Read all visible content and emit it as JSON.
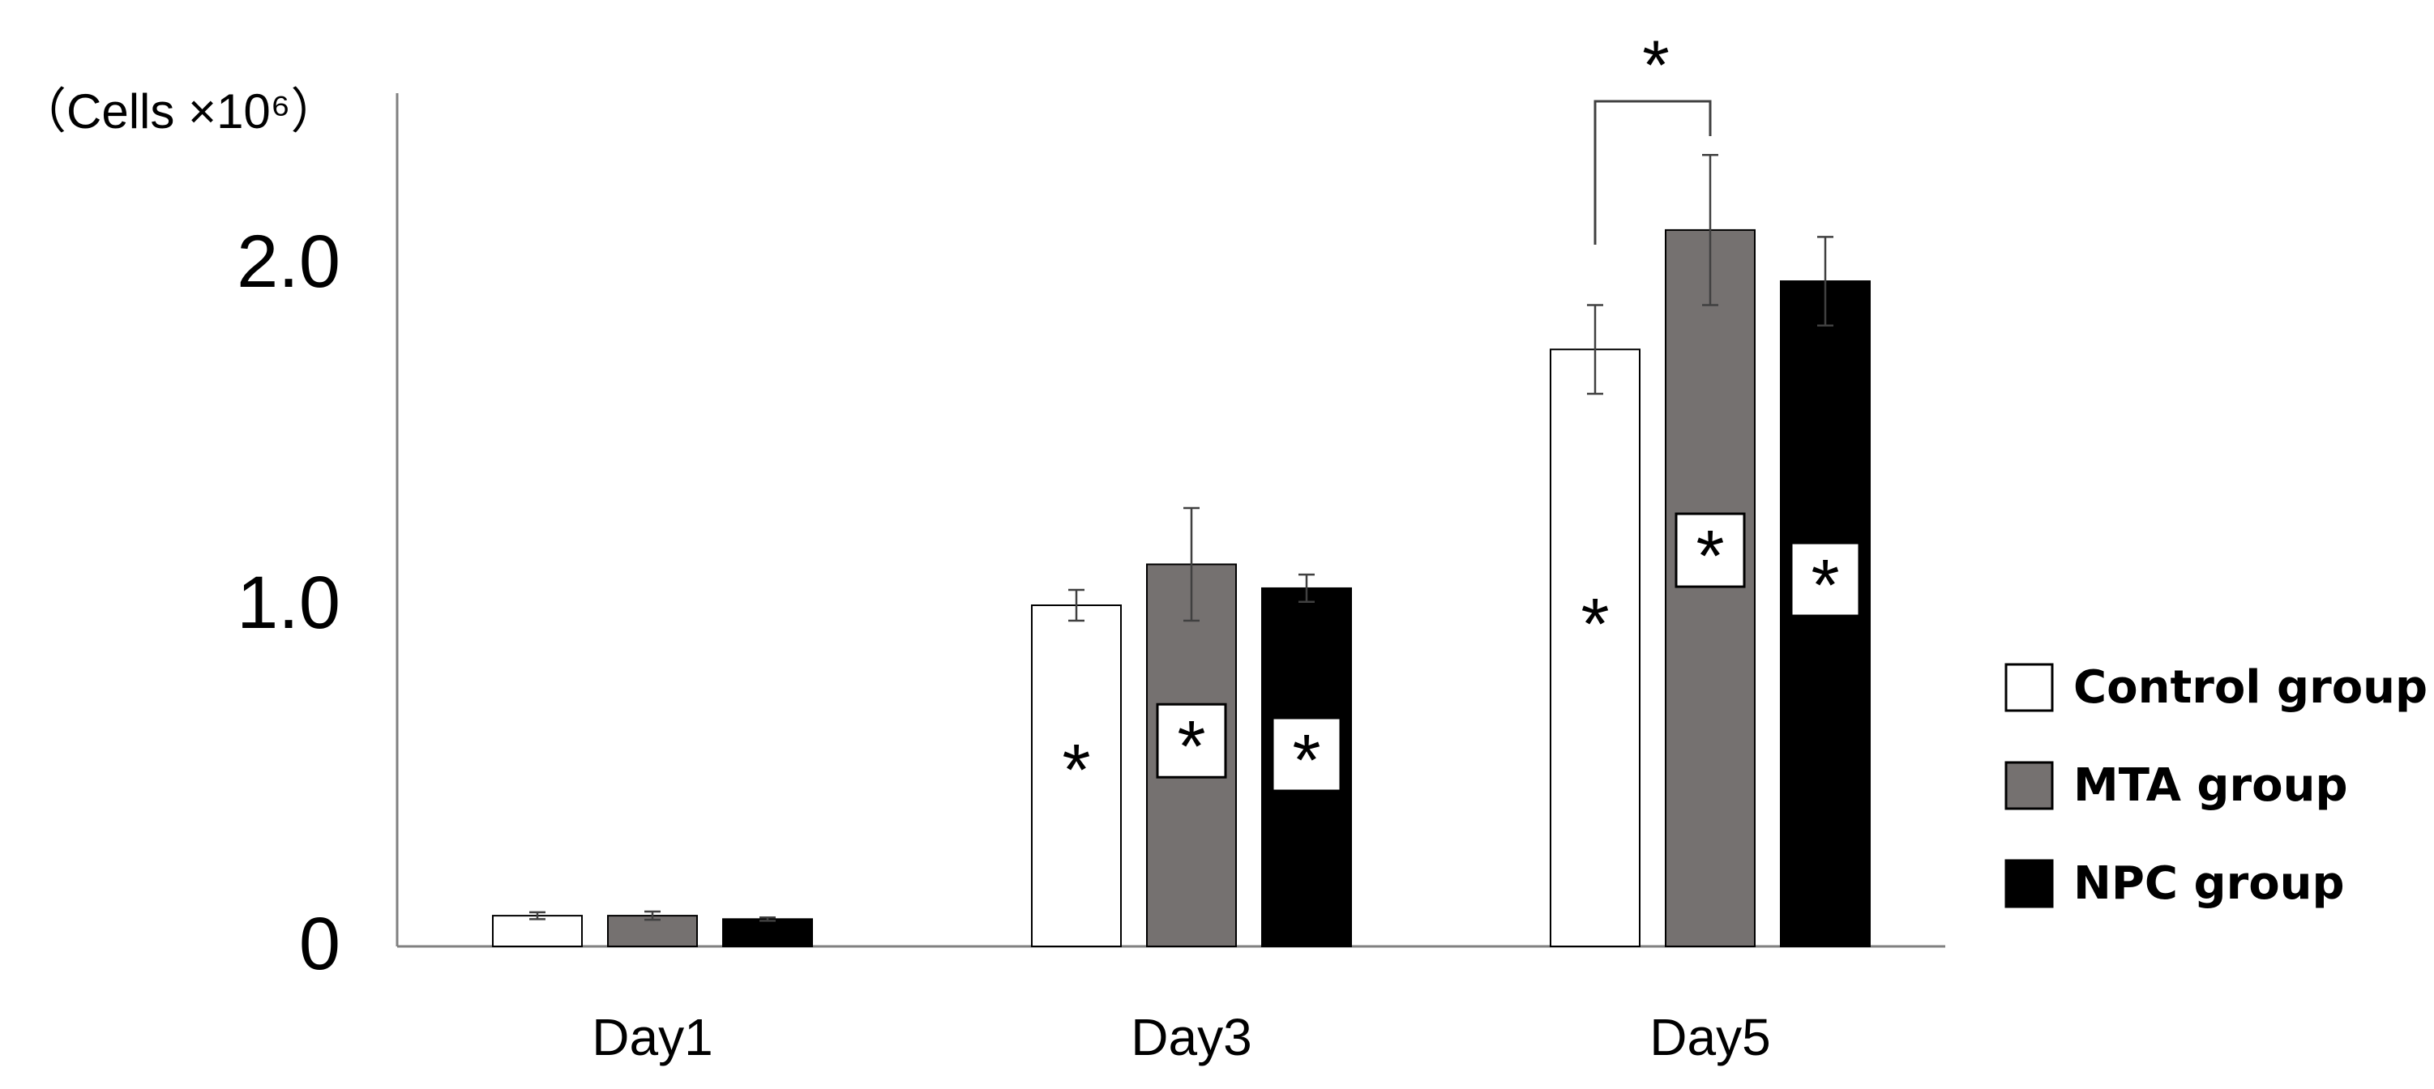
{
  "chart_data": {
    "type": "bar",
    "title": "",
    "xlabel": "",
    "ylabel": "（Cells ×10⁶）",
    "ylim": [
      0,
      2.5
    ],
    "yticks": [
      {
        "value": 0,
        "label": "0"
      },
      {
        "value": 1.0,
        "label": "1.0"
      },
      {
        "value": 2.0,
        "label": "2.0"
      }
    ],
    "categories": [
      "Day1",
      "Day3",
      "Day5"
    ],
    "series": [
      {
        "name": "Control group",
        "color": "#ffffff",
        "values": [
          0.09,
          1.0,
          1.75
        ],
        "errors": [
          0.01,
          0.045,
          0.13
        ]
      },
      {
        "name": "MTA group",
        "color": "#757170",
        "values": [
          0.09,
          1.12,
          2.1
        ],
        "errors": [
          0.012,
          0.165,
          0.22
        ]
      },
      {
        "name": "NPC group",
        "color": "#000000",
        "values": [
          0.08,
          1.05,
          1.95
        ],
        "errors": [
          0.005,
          0.04,
          0.13
        ]
      }
    ],
    "significance_markers": [
      {
        "category": "Day3",
        "series": "Control group",
        "label": "*",
        "boxed": false
      },
      {
        "category": "Day3",
        "series": "MTA group",
        "label": "*",
        "boxed": true
      },
      {
        "category": "Day3",
        "series": "NPC group",
        "label": "*",
        "boxed": true
      },
      {
        "category": "Day5",
        "series": "Control group",
        "label": "*",
        "boxed": false
      },
      {
        "category": "Day5",
        "series": "MTA group",
        "label": "*",
        "boxed": true
      },
      {
        "category": "Day5",
        "series": "NPC group",
        "label": "*",
        "boxed": true
      }
    ],
    "comparison_brackets": [
      {
        "category": "Day5",
        "from": "Control group",
        "to": "MTA group",
        "label": "*"
      }
    ],
    "legend": {
      "position": "right"
    },
    "grid": false
  }
}
